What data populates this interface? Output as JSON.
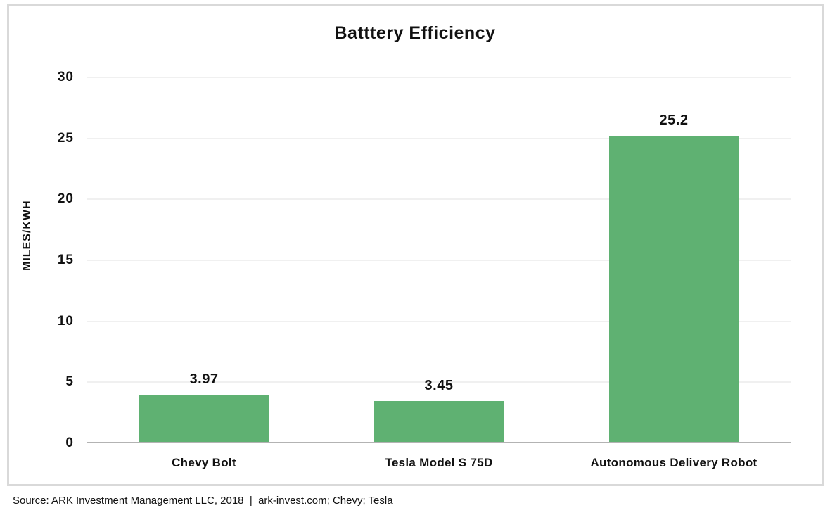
{
  "chart_data": {
    "type": "bar",
    "title": "Batttery Efficiency",
    "categories": [
      "Chevy Bolt",
      "Tesla Model S 75D",
      "Autonomous Delivery Robot"
    ],
    "values": [
      3.97,
      3.45,
      25.2
    ],
    "value_labels": [
      "3.97",
      "3.45",
      "25.2"
    ],
    "xlabel": "",
    "ylabel": "MILES/KWH",
    "ylim": [
      0,
      30
    ],
    "yticks": [
      0,
      5,
      10,
      15,
      20,
      25,
      30
    ],
    "grid": true,
    "legend": "none",
    "bar_color": "#5fb172"
  },
  "source_note": "Source: ARK Investment Management LLC, 2018  |  ark-invest.com; Chevy; Tesla",
  "colors": {
    "bar": "#5fb172",
    "axis_line": "#b3b3b3",
    "gridline": "#f0f0f0",
    "frame_border": "#d9d9d9",
    "text": "#111111",
    "background": "#ffffff"
  }
}
